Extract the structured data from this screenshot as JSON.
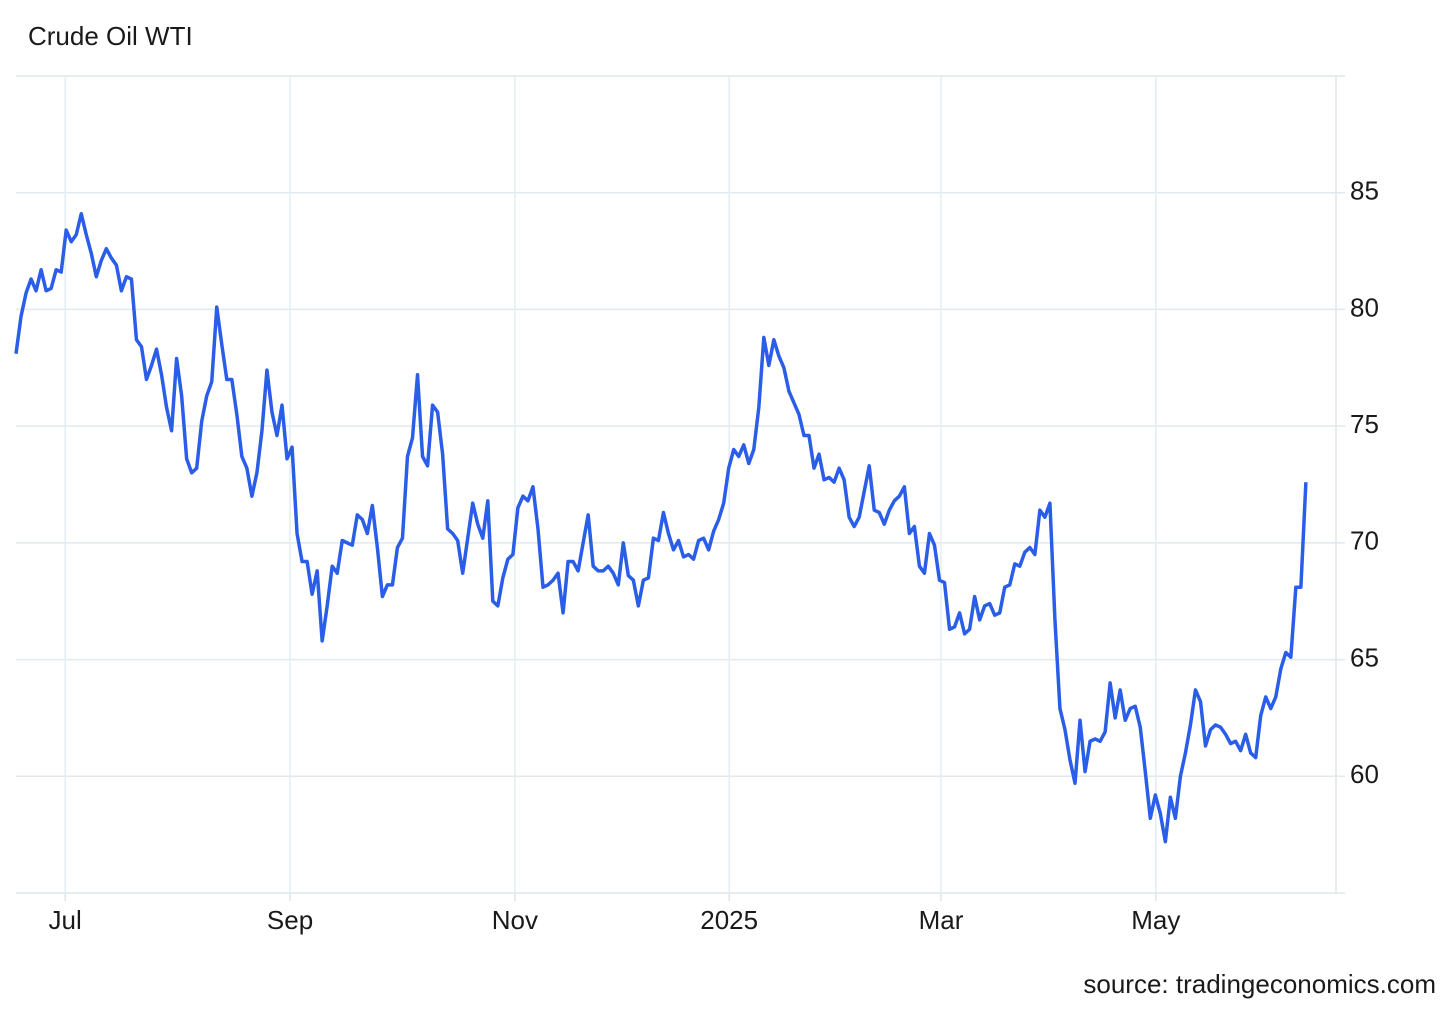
{
  "chart_data": {
    "type": "line",
    "title": "Crude Oil WTI",
    "source": "source: tradingeconomics.com",
    "color": "#2a5ee8",
    "grid": true,
    "ylim": [
      55,
      90
    ],
    "yticks": [
      60,
      65,
      70,
      75,
      80,
      85
    ],
    "xlim": [
      0,
      263
    ],
    "xticks": [
      {
        "value": 9.8,
        "label": "Jul"
      },
      {
        "value": 54.6,
        "label": "Sep"
      },
      {
        "value": 99.4,
        "label": "Nov"
      },
      {
        "value": 142.1,
        "label": "2025"
      },
      {
        "value": 184.3,
        "label": "Mar"
      },
      {
        "value": 227.1,
        "label": "May"
      }
    ],
    "values": [
      78.1,
      79.7,
      80.7,
      81.3,
      80.8,
      81.7,
      80.8,
      80.9,
      81.7,
      81.6,
      83.4,
      82.9,
      83.2,
      84.1,
      83.2,
      82.4,
      81.4,
      82.1,
      82.6,
      82.2,
      81.9,
      80.8,
      81.4,
      81.3,
      78.7,
      78.4,
      77.0,
      77.6,
      78.3,
      77.2,
      75.8,
      74.8,
      77.9,
      76.3,
      73.6,
      73.0,
      73.2,
      75.2,
      76.3,
      76.9,
      80.1,
      78.5,
      77.0,
      77.0,
      75.5,
      73.7,
      73.2,
      72.0,
      73.0,
      74.8,
      77.4,
      75.6,
      74.6,
      75.9,
      73.6,
      74.1,
      70.4,
      69.2,
      69.2,
      67.8,
      68.8,
      65.8,
      67.3,
      69.0,
      68.7,
      70.1,
      70.0,
      69.9,
      71.2,
      71.0,
      70.4,
      71.6,
      69.8,
      67.7,
      68.2,
      68.2,
      69.8,
      70.2,
      73.7,
      74.5,
      77.2,
      73.7,
      73.3,
      75.9,
      75.6,
      73.8,
      70.6,
      70.4,
      70.1,
      68.7,
      70.2,
      71.7,
      70.8,
      70.2,
      71.8,
      67.5,
      67.3,
      68.5,
      69.3,
      69.5,
      71.5,
      72.0,
      71.8,
      72.4,
      70.6,
      68.1,
      68.2,
      68.4,
      68.7,
      67.0,
      69.2,
      69.2,
      68.8,
      70.0,
      71.2,
      69.0,
      68.8,
      68.8,
      69.0,
      68.7,
      68.2,
      70.0,
      68.6,
      68.4,
      67.3,
      68.4,
      68.5,
      70.2,
      70.1,
      71.3,
      70.4,
      69.7,
      70.1,
      69.4,
      69.5,
      69.3,
      70.1,
      70.2,
      69.7,
      70.5,
      71.0,
      71.7,
      73.2,
      74.0,
      73.7,
      74.2,
      73.4,
      74.0,
      75.8,
      78.8,
      77.6,
      78.7,
      78.0,
      77.5,
      76.5,
      76.0,
      75.5,
      74.6,
      74.6,
      73.2,
      73.8,
      72.7,
      72.8,
      72.6,
      73.2,
      72.7,
      71.1,
      70.7,
      71.1,
      72.2,
      73.3,
      71.4,
      71.3,
      70.8,
      71.4,
      71.8,
      72.0,
      72.4,
      70.4,
      70.7,
      69.0,
      68.7,
      70.4,
      69.9,
      68.4,
      68.3,
      66.3,
      66.4,
      67.0,
      66.1,
      66.3,
      67.7,
      66.7,
      67.3,
      67.4,
      66.9,
      67.0,
      68.1,
      68.2,
      69.1,
      69.0,
      69.6,
      69.8,
      69.5,
      71.4,
      71.1,
      71.7,
      66.7,
      62.9,
      62.0,
      60.7,
      59.7,
      62.4,
      60.2,
      61.5,
      61.6,
      61.5,
      61.9,
      64.0,
      62.5,
      63.7,
      62.4,
      62.9,
      63.0,
      62.1,
      60.2,
      58.2,
      59.2,
      58.4,
      57.2,
      59.1,
      58.2,
      60.0,
      61.0,
      62.2,
      63.7,
      63.2,
      61.3,
      62.0,
      62.2,
      62.1,
      61.8,
      61.4,
      61.5,
      61.1,
      61.8,
      61.0,
      60.8,
      62.6,
      63.4,
      62.9,
      63.4,
      64.6,
      65.3,
      65.1,
      68.1,
      68.1,
      72.6
    ]
  }
}
